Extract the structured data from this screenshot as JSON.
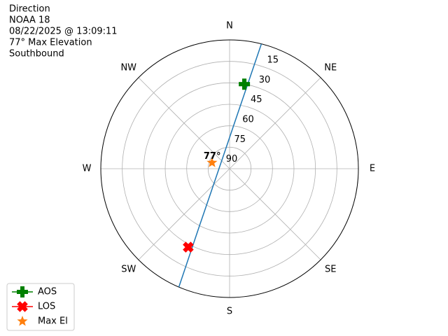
{
  "chart_data": {
    "type": "polar",
    "annotations": [
      "Direction",
      "NOAA 18",
      "08/22/2025 @ 13:09:11",
      "77° Max Elevation",
      "Southbound"
    ],
    "xticks": [
      {
        "value": 0,
        "label": "N"
      },
      {
        "value": 45,
        "label": "NE"
      },
      {
        "value": 90,
        "label": "E"
      },
      {
        "value": 135,
        "label": "SE"
      },
      {
        "value": 180,
        "label": "S"
      },
      {
        "value": 225,
        "label": "SW"
      },
      {
        "value": 270,
        "label": "W"
      },
      {
        "value": 315,
        "label": "NW"
      }
    ],
    "ylim": [
      90,
      0
    ],
    "yticks": [
      15,
      30,
      45,
      60,
      75,
      90
    ],
    "grid": true,
    "track": {
      "color": "#1f77b4",
      "azimuth": [
        14.3,
        12.3,
        7.5,
        338.7,
        219.6,
        207.6,
        204.3,
        203.2
      ],
      "elevation": [
        0,
        27.4,
        54,
        79.1,
        70.2,
        44,
        17.4,
        0
      ]
    },
    "series": [
      {
        "name": "AOS",
        "color": "#008000",
        "marker": "plus",
        "line": true,
        "azimuth": [
          9.9
        ],
        "values": [
          30
        ]
      },
      {
        "name": "LOS",
        "color": "#ff0000",
        "marker": "x",
        "line": true,
        "azimuth": [
          207.8
        ],
        "values": [
          28
        ]
      },
      {
        "name": "Max El",
        "color": "#ff7f0e",
        "marker": "star",
        "line": false,
        "azimuth": [
          289
        ],
        "values": [
          77
        ],
        "value_labels": [
          "77°"
        ]
      }
    ]
  }
}
